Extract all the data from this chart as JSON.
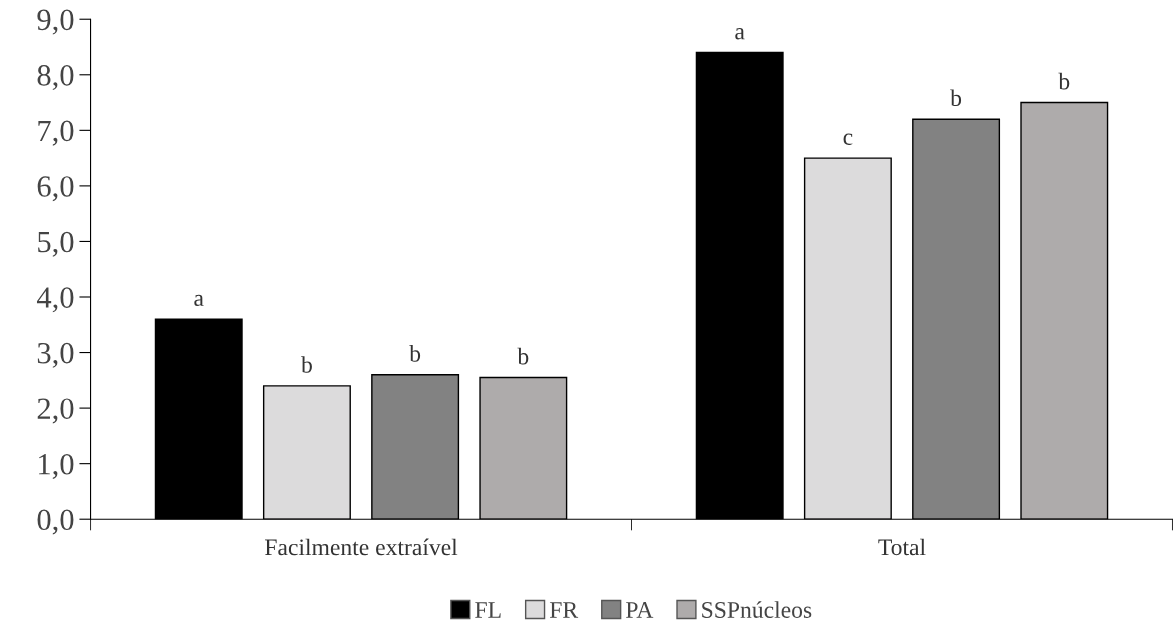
{
  "chart_data": {
    "type": "bar",
    "categories": [
      "Facilmente extraível",
      "Total"
    ],
    "series": [
      {
        "name": "FL",
        "color": "#000000",
        "values": [
          3.6,
          8.4
        ],
        "value_labels": [
          "a",
          "a"
        ]
      },
      {
        "name": "FR",
        "color": "#dcdbdc",
        "values": [
          2.4,
          6.5
        ],
        "value_labels": [
          "b",
          "c"
        ]
      },
      {
        "name": "PA",
        "color": "#828282",
        "values": [
          2.6,
          7.2
        ],
        "value_labels": [
          "b",
          "b"
        ]
      },
      {
        "name": "SSPnúcleos",
        "color": "#aeabab",
        "values": [
          2.55,
          7.5
        ],
        "value_labels": [
          "b",
          "b"
        ]
      }
    ],
    "ylim": [
      0,
      9
    ],
    "yticks": [
      {
        "value": 0,
        "label": "0,0"
      },
      {
        "value": 1,
        "label": "1,0"
      },
      {
        "value": 2,
        "label": "2,0"
      },
      {
        "value": 3,
        "label": "3,0"
      },
      {
        "value": 4,
        "label": "4,0"
      },
      {
        "value": 5,
        "label": "5,0"
      },
      {
        "value": 6,
        "label": "6,0"
      },
      {
        "value": 7,
        "label": "7,0"
      },
      {
        "value": 8,
        "label": "8,0"
      },
      {
        "value": 9,
        "label": "9,0"
      }
    ],
    "grid": false,
    "legend": "bottom"
  }
}
